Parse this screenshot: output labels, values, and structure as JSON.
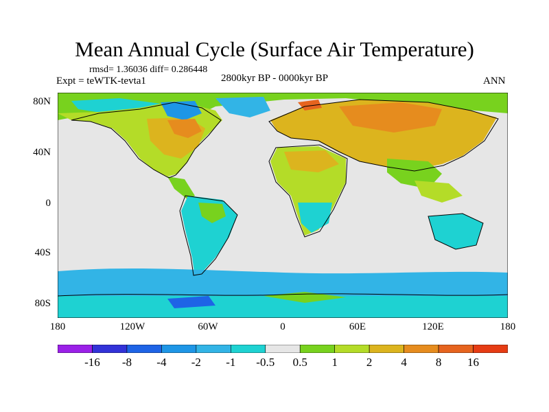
{
  "header": {
    "title": "Mean Annual Cycle (Surface Air Temperature)",
    "stats": "rmsd= 1.36036 diff= 0.286448",
    "experiment": "Expt = teWTK-tevta1",
    "period": "2800kyr BP - 0000kyr BP",
    "season": "ANN"
  },
  "map": {
    "lat_ticks": [
      "80N",
      "40N",
      "0",
      "40S",
      "80S"
    ],
    "lon_ticks": [
      "180",
      "120W",
      "60W",
      "0",
      "60E",
      "120E",
      "180"
    ],
    "ocean_color": "#e6e6e6",
    "coast_color": "#000000"
  },
  "colorbar": {
    "colors": [
      "#9b20e8",
      "#3232d8",
      "#1e64e6",
      "#1e96e6",
      "#32b4e6",
      "#1ed2d2",
      "#e6e6e6",
      "#78d21e",
      "#b4dc28",
      "#dcb41e",
      "#e68c1e",
      "#e6641e",
      "#e63c14"
    ],
    "labels": [
      "-16",
      "-8",
      "-4",
      "-2",
      "-1",
      "-0.5",
      "0.5",
      "1",
      "2",
      "4",
      "8",
      "16"
    ]
  }
}
